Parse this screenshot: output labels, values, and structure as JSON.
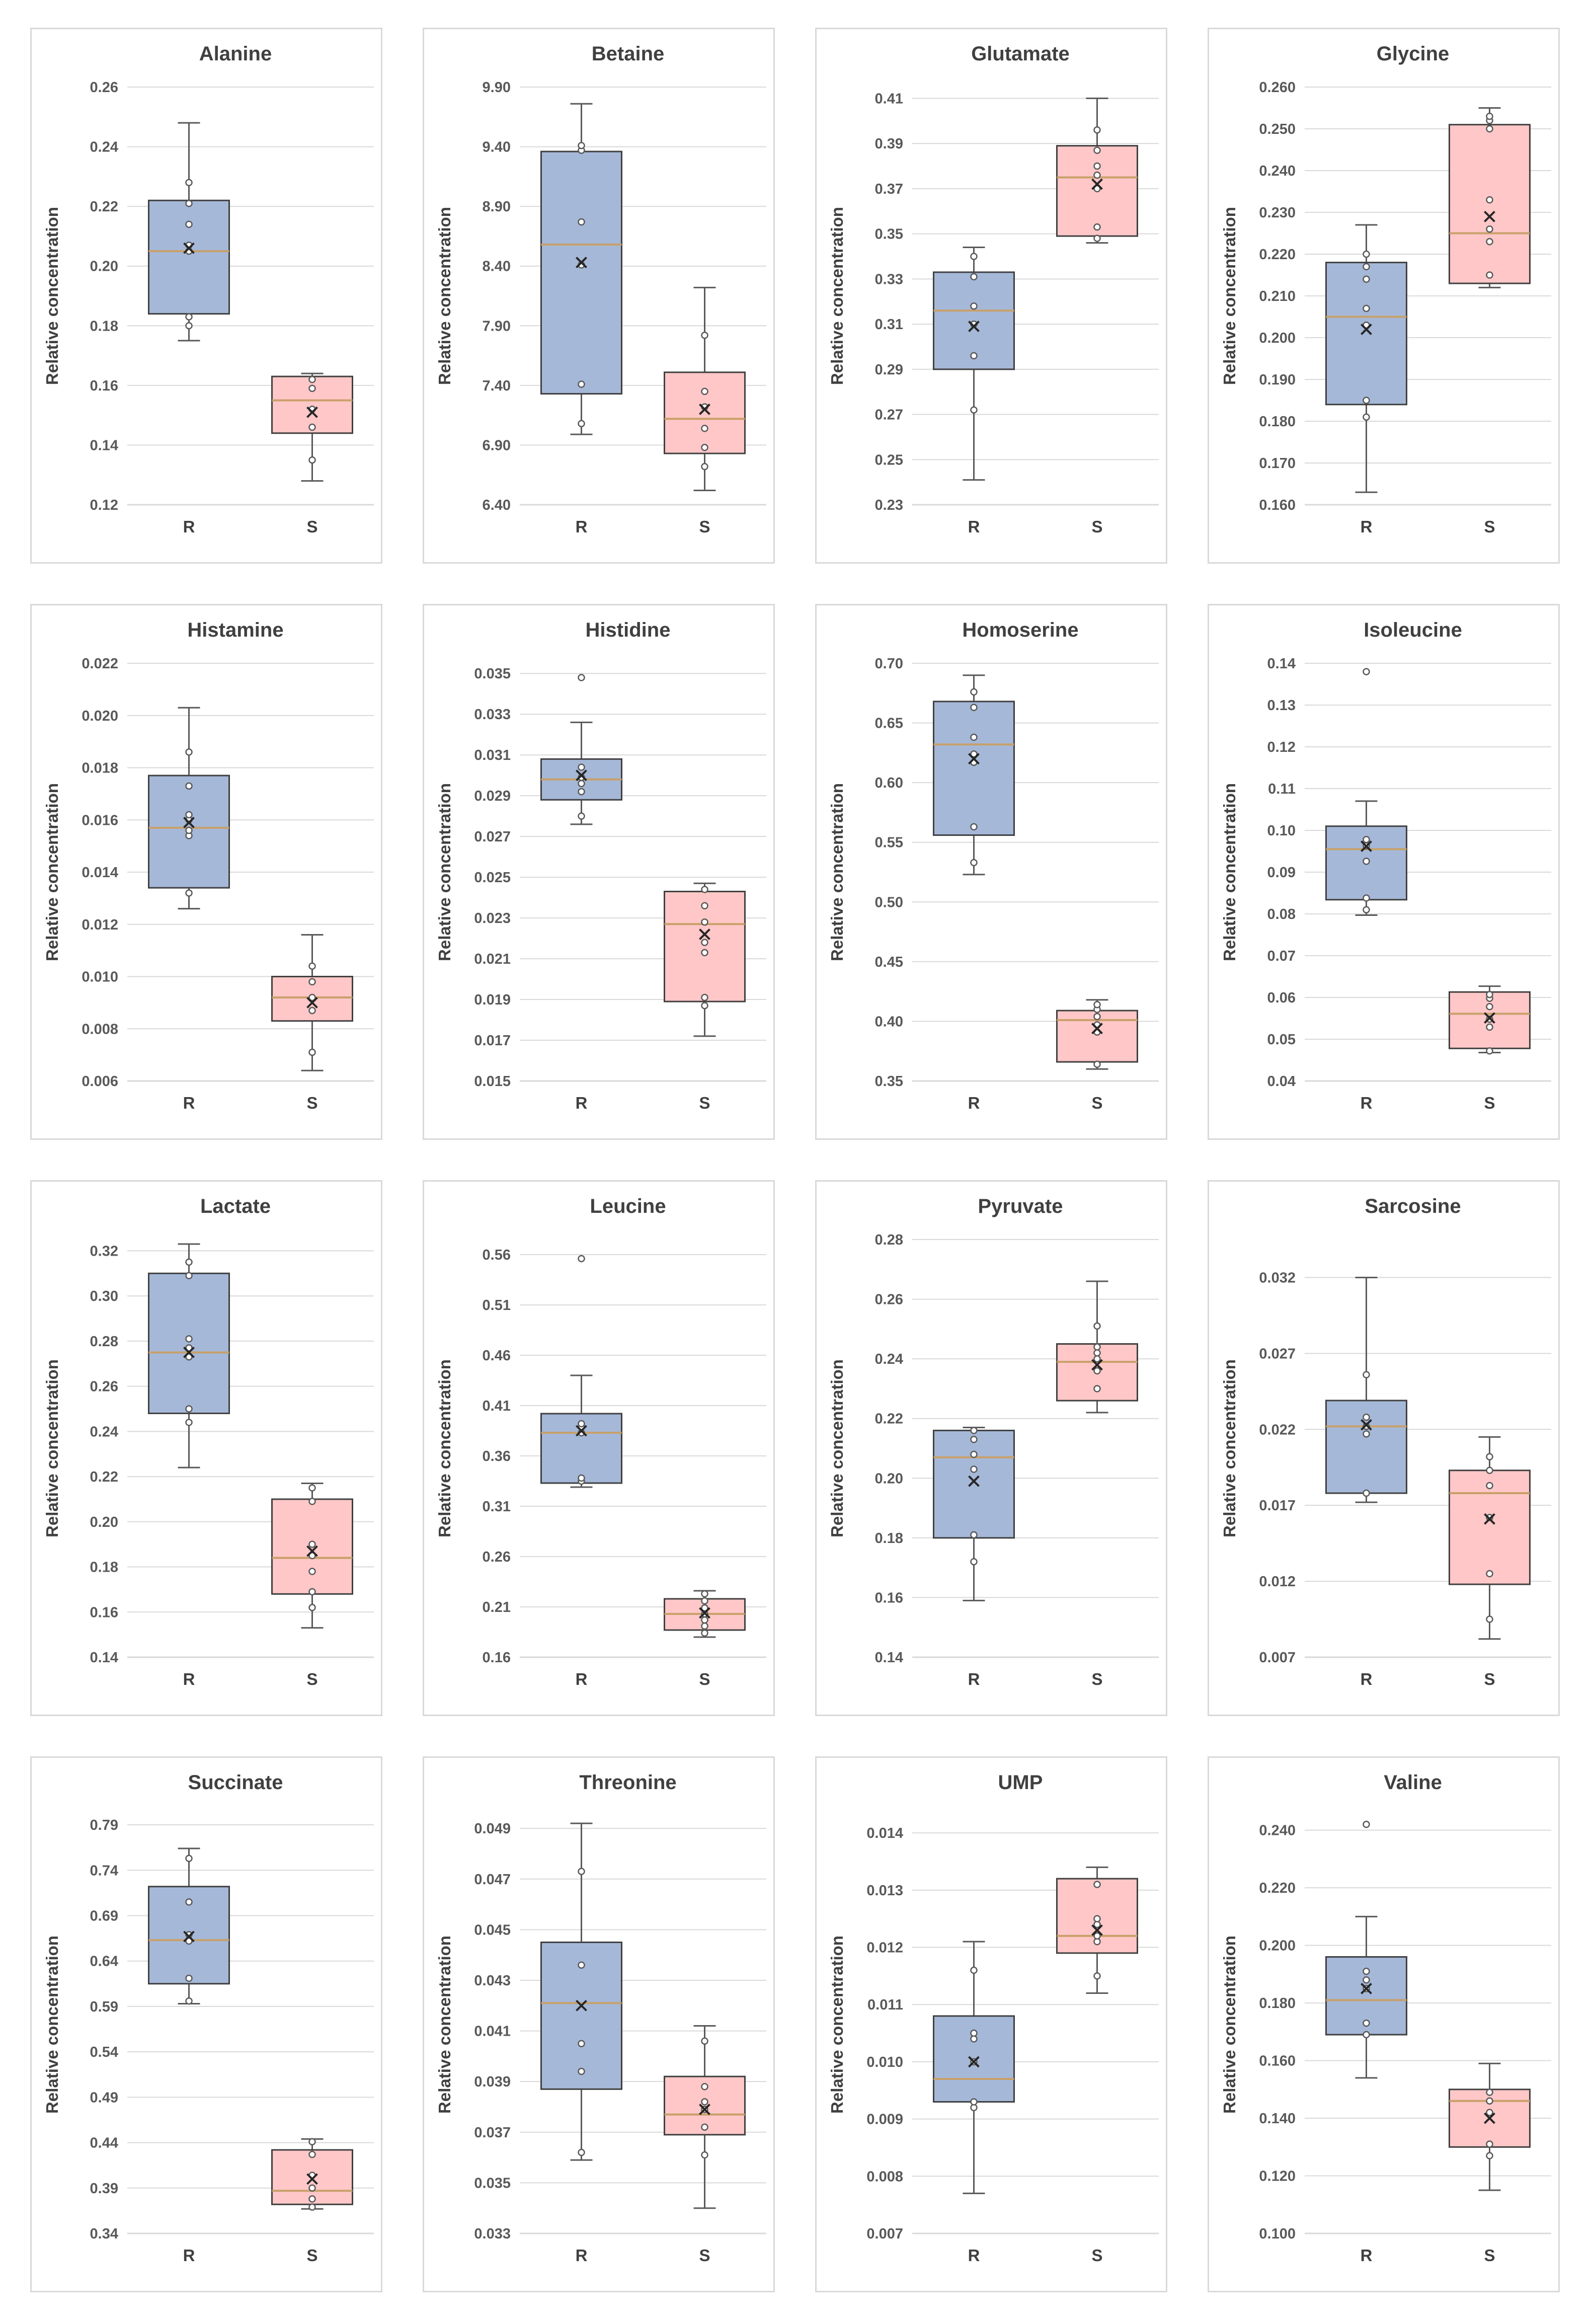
{
  "ylabel": "Relative concentration",
  "colors": {
    "R": "#a5b8d8",
    "S": "#ffc7c7",
    "median": "#c8a06a",
    "whisker": "#595959",
    "grid": "#d9d9d9",
    "point": "#595959"
  },
  "chart_data": [
    {
      "type": "box",
      "title": "Alanine",
      "categories": [
        "R",
        "S"
      ],
      "yticks": [
        "0.12",
        "0.14",
        "0.16",
        "0.18",
        "0.20",
        "0.22",
        "0.24",
        "0.26"
      ],
      "ylim": [
        0.12,
        0.26
      ],
      "boxes": [
        {
          "group": "R",
          "min": 0.175,
          "q1": 0.184,
          "median": 0.205,
          "q3": 0.222,
          "max": 0.248,
          "mean": 0.206,
          "points": [
            0.18,
            0.183,
            0.205,
            0.207,
            0.214,
            0.221,
            0.228
          ]
        },
        {
          "group": "S",
          "min": 0.128,
          "q1": 0.144,
          "median": 0.155,
          "q3": 0.163,
          "max": 0.164,
          "mean": 0.151,
          "points": [
            0.135,
            0.146,
            0.152,
            0.159,
            0.162
          ]
        }
      ]
    },
    {
      "type": "box",
      "title": "Betaine",
      "categories": [
        "R",
        "S"
      ],
      "yticks": [
        "6.40",
        "6.90",
        "7.40",
        "7.90",
        "8.40",
        "8.90",
        "9.40",
        "9.90"
      ],
      "ylim": [
        6.4,
        9.9
      ],
      "boxes": [
        {
          "group": "R",
          "min": 6.99,
          "q1": 7.33,
          "median": 8.58,
          "q3": 9.36,
          "max": 9.76,
          "mean": 8.43,
          "points": [
            7.08,
            7.41,
            8.41,
            8.77,
            9.37,
            9.41
          ]
        },
        {
          "group": "S",
          "min": 6.52,
          "q1": 6.83,
          "median": 7.12,
          "q3": 7.51,
          "max": 8.22,
          "mean": 7.2,
          "points": [
            6.72,
            6.88,
            7.04,
            7.22,
            7.35,
            7.82
          ]
        }
      ]
    },
    {
      "type": "box",
      "title": "Glutamate",
      "categories": [
        "R",
        "S"
      ],
      "yticks": [
        "0.23",
        "0.25",
        "0.27",
        "0.29",
        "0.31",
        "0.33",
        "0.35",
        "0.37",
        "0.39",
        "0.41"
      ],
      "ylim": [
        0.23,
        0.415
      ],
      "boxes": [
        {
          "group": "R",
          "min": 0.241,
          "q1": 0.29,
          "median": 0.316,
          "q3": 0.333,
          "max": 0.344,
          "mean": 0.309,
          "points": [
            0.272,
            0.296,
            0.31,
            0.318,
            0.331,
            0.34
          ]
        },
        {
          "group": "S",
          "min": 0.346,
          "q1": 0.349,
          "median": 0.375,
          "q3": 0.389,
          "max": 0.41,
          "mean": 0.372,
          "points": [
            0.348,
            0.353,
            0.37,
            0.376,
            0.38,
            0.387,
            0.396
          ]
        }
      ]
    },
    {
      "type": "box",
      "title": "Glycine",
      "categories": [
        "R",
        "S"
      ],
      "yticks": [
        "0.160",
        "0.170",
        "0.180",
        "0.190",
        "0.200",
        "0.210",
        "0.220",
        "0.230",
        "0.240",
        "0.250",
        "0.260"
      ],
      "ylim": [
        0.16,
        0.26
      ],
      "boxes": [
        {
          "group": "R",
          "min": 0.163,
          "q1": 0.184,
          "median": 0.205,
          "q3": 0.218,
          "max": 0.227,
          "mean": 0.202,
          "points": [
            0.181,
            0.185,
            0.203,
            0.207,
            0.214,
            0.217,
            0.22
          ]
        },
        {
          "group": "S",
          "min": 0.212,
          "q1": 0.213,
          "median": 0.225,
          "q3": 0.251,
          "max": 0.255,
          "mean": 0.229,
          "points": [
            0.215,
            0.223,
            0.226,
            0.233,
            0.25,
            0.252,
            0.253
          ]
        }
      ]
    },
    {
      "type": "box",
      "title": "Histamine",
      "categories": [
        "R",
        "S"
      ],
      "yticks": [
        "0.006",
        "0.008",
        "0.010",
        "0.012",
        "0.014",
        "0.016",
        "0.018",
        "0.020",
        "0.022"
      ],
      "ylim": [
        0.006,
        0.022
      ],
      "boxes": [
        {
          "group": "R",
          "min": 0.0126,
          "q1": 0.0134,
          "median": 0.0157,
          "q3": 0.0177,
          "max": 0.0203,
          "mean": 0.0159,
          "points": [
            0.0132,
            0.0154,
            0.0156,
            0.016,
            0.0162,
            0.0173,
            0.0186
          ]
        },
        {
          "group": "S",
          "min": 0.0064,
          "q1": 0.0083,
          "median": 0.0092,
          "q3": 0.01,
          "max": 0.0116,
          "mean": 0.009,
          "points": [
            0.0071,
            0.0087,
            0.0092,
            0.0098,
            0.0104
          ]
        }
      ]
    },
    {
      "type": "box",
      "title": "Histidine",
      "categories": [
        "R",
        "S"
      ],
      "yticks": [
        "0.015",
        "0.017",
        "0.019",
        "0.021",
        "0.023",
        "0.025",
        "0.027",
        "0.029",
        "0.031",
        "0.033",
        "0.035"
      ],
      "ylim": [
        0.015,
        0.0355
      ],
      "boxes": [
        {
          "group": "R",
          "min": 0.0276,
          "q1": 0.0288,
          "median": 0.0298,
          "q3": 0.0308,
          "max": 0.0326,
          "mean": 0.03,
          "points": [
            0.028,
            0.0292,
            0.0296,
            0.0299,
            0.0304,
            0.0348
          ]
        },
        {
          "group": "S",
          "min": 0.0172,
          "q1": 0.0189,
          "median": 0.0227,
          "q3": 0.0243,
          "max": 0.0247,
          "mean": 0.0222,
          "points": [
            0.0187,
            0.0191,
            0.0213,
            0.0218,
            0.0228,
            0.0236,
            0.0244
          ]
        }
      ]
    },
    {
      "type": "box",
      "title": "Homoserine",
      "categories": [
        "R",
        "S"
      ],
      "yticks": [
        "0.35",
        "0.40",
        "0.45",
        "0.50",
        "0.55",
        "0.60",
        "0.65",
        "0.70"
      ],
      "ylim": [
        0.35,
        0.7
      ],
      "boxes": [
        {
          "group": "R",
          "min": 0.523,
          "q1": 0.556,
          "median": 0.632,
          "q3": 0.668,
          "max": 0.69,
          "mean": 0.62,
          "points": [
            0.533,
            0.563,
            0.617,
            0.624,
            0.638,
            0.663,
            0.676
          ]
        },
        {
          "group": "S",
          "min": 0.36,
          "q1": 0.366,
          "median": 0.401,
          "q3": 0.409,
          "max": 0.418,
          "mean": 0.394,
          "points": [
            0.364,
            0.391,
            0.397,
            0.404,
            0.41,
            0.414
          ]
        }
      ]
    },
    {
      "type": "box",
      "title": "Isoleucine",
      "categories": [
        "R",
        "S"
      ],
      "yticks": [
        "0.04",
        "0.05",
        "0.06",
        "0.07",
        "0.08",
        "0.09",
        "0.10",
        "0.11",
        "0.12",
        "0.13",
        "0.14"
      ],
      "ylim": [
        0.04,
        0.14
      ],
      "boxes": [
        {
          "group": "R",
          "min": 0.0797,
          "q1": 0.0834,
          "median": 0.0955,
          "q3": 0.101,
          "max": 0.107,
          "mean": 0.0962,
          "points": [
            0.081,
            0.0838,
            0.0926,
            0.0963,
            0.0978,
            0.138
          ]
        },
        {
          "group": "S",
          "min": 0.0468,
          "q1": 0.0478,
          "median": 0.0561,
          "q3": 0.0613,
          "max": 0.0627,
          "mean": 0.0551,
          "points": [
            0.0472,
            0.0529,
            0.0548,
            0.0578,
            0.0598,
            0.0607
          ]
        }
      ]
    },
    {
      "type": "box",
      "title": "Lactate",
      "categories": [
        "R",
        "S"
      ],
      "yticks": [
        "0.14",
        "0.16",
        "0.18",
        "0.20",
        "0.22",
        "0.24",
        "0.26",
        "0.28",
        "0.30",
        "0.32"
      ],
      "ylim": [
        0.14,
        0.325
      ],
      "boxes": [
        {
          "group": "R",
          "min": 0.224,
          "q1": 0.248,
          "median": 0.275,
          "q3": 0.31,
          "max": 0.323,
          "mean": 0.275,
          "points": [
            0.244,
            0.25,
            0.273,
            0.277,
            0.281,
            0.309,
            0.315
          ]
        },
        {
          "group": "S",
          "min": 0.153,
          "q1": 0.168,
          "median": 0.184,
          "q3": 0.21,
          "max": 0.217,
          "mean": 0.187,
          "points": [
            0.162,
            0.169,
            0.178,
            0.185,
            0.19,
            0.209,
            0.215
          ]
        }
      ]
    },
    {
      "type": "box",
      "title": "Leucine",
      "categories": [
        "R",
        "S"
      ],
      "yticks": [
        "0.16",
        "0.21",
        "0.26",
        "0.31",
        "0.36",
        "0.41",
        "0.46",
        "0.51",
        "0.56"
      ],
      "ylim": [
        0.16,
        0.575
      ],
      "boxes": [
        {
          "group": "R",
          "min": 0.329,
          "q1": 0.333,
          "median": 0.383,
          "q3": 0.402,
          "max": 0.44,
          "mean": 0.385,
          "points": [
            0.335,
            0.338,
            0.383,
            0.389,
            0.392,
            0.556
          ]
        },
        {
          "group": "S",
          "min": 0.18,
          "q1": 0.187,
          "median": 0.203,
          "q3": 0.218,
          "max": 0.226,
          "mean": 0.204,
          "points": [
            0.184,
            0.191,
            0.197,
            0.203,
            0.209,
            0.216,
            0.223
          ]
        }
      ]
    },
    {
      "type": "box",
      "title": "Pyruvate",
      "categories": [
        "R",
        "S"
      ],
      "yticks": [
        "0.14",
        "0.16",
        "0.18",
        "0.20",
        "0.22",
        "0.24",
        "0.26",
        "0.28"
      ],
      "ylim": [
        0.14,
        0.28
      ],
      "boxes": [
        {
          "group": "R",
          "min": 0.159,
          "q1": 0.18,
          "median": 0.207,
          "q3": 0.216,
          "max": 0.217,
          "mean": 0.199,
          "points": [
            0.172,
            0.181,
            0.203,
            0.208,
            0.213,
            0.216
          ]
        },
        {
          "group": "S",
          "min": 0.222,
          "q1": 0.226,
          "median": 0.239,
          "q3": 0.245,
          "max": 0.266,
          "mean": 0.238,
          "points": [
            0.23,
            0.236,
            0.24,
            0.242,
            0.244,
            0.251
          ]
        }
      ]
    },
    {
      "type": "box",
      "title": "Sarcosine",
      "categories": [
        "R",
        "S"
      ],
      "yticks": [
        "0.007",
        "0.012",
        "0.017",
        "0.022",
        "0.027",
        "0.032"
      ],
      "ylim": [
        0.007,
        0.0345
      ],
      "boxes": [
        {
          "group": "R",
          "min": 0.0172,
          "q1": 0.0178,
          "median": 0.0222,
          "q3": 0.0239,
          "max": 0.032,
          "mean": 0.0223,
          "points": [
            0.0178,
            0.0217,
            0.0222,
            0.0228,
            0.0256
          ]
        },
        {
          "group": "S",
          "min": 0.0082,
          "q1": 0.0118,
          "median": 0.0178,
          "q3": 0.0193,
          "max": 0.0215,
          "mean": 0.0161,
          "points": [
            0.0095,
            0.0125,
            0.0162,
            0.0183,
            0.0193,
            0.0202
          ]
        }
      ]
    },
    {
      "type": "box",
      "title": "Succinate",
      "categories": [
        "R",
        "S"
      ],
      "yticks": [
        "0.34",
        "0.39",
        "0.44",
        "0.49",
        "0.54",
        "0.59",
        "0.64",
        "0.69",
        "0.74",
        "0.79"
      ],
      "ylim": [
        0.34,
        0.8
      ],
      "boxes": [
        {
          "group": "R",
          "min": 0.593,
          "q1": 0.615,
          "median": 0.663,
          "q3": 0.722,
          "max": 0.764,
          "mean": 0.667,
          "points": [
            0.596,
            0.621,
            0.662,
            0.669,
            0.705,
            0.753
          ]
        },
        {
          "group": "S",
          "min": 0.367,
          "q1": 0.372,
          "median": 0.387,
          "q3": 0.432,
          "max": 0.444,
          "mean": 0.4,
          "points": [
            0.369,
            0.378,
            0.39,
            0.404,
            0.427,
            0.441
          ]
        }
      ]
    },
    {
      "type": "box",
      "title": "Threonine",
      "categories": [
        "R",
        "S"
      ],
      "yticks": [
        "0.033",
        "0.035",
        "0.037",
        "0.039",
        "0.041",
        "0.043",
        "0.045",
        "0.047",
        "0.049"
      ],
      "ylim": [
        0.033,
        0.0495
      ],
      "boxes": [
        {
          "group": "R",
          "min": 0.0359,
          "q1": 0.0387,
          "median": 0.0421,
          "q3": 0.0445,
          "max": 0.0492,
          "mean": 0.042,
          "points": [
            0.0362,
            0.0394,
            0.0405,
            0.0436,
            0.0473
          ]
        },
        {
          "group": "S",
          "min": 0.034,
          "q1": 0.0369,
          "median": 0.0377,
          "q3": 0.0392,
          "max": 0.0412,
          "mean": 0.0379,
          "points": [
            0.0361,
            0.0372,
            0.0379,
            0.0382,
            0.0388,
            0.0406
          ]
        }
      ]
    },
    {
      "type": "box",
      "title": "UMP",
      "categories": [
        "R",
        "S"
      ],
      "yticks": [
        "0.007",
        "0.008",
        "0.009",
        "0.010",
        "0.011",
        "0.012",
        "0.013",
        "0.014"
      ],
      "ylim": [
        0.007,
        0.0143
      ],
      "boxes": [
        {
          "group": "R",
          "min": 0.0077,
          "q1": 0.0093,
          "median": 0.0097,
          "q3": 0.0108,
          "max": 0.0121,
          "mean": 0.01,
          "points": [
            0.0092,
            0.0093,
            0.01,
            0.0104,
            0.0105,
            0.0116
          ]
        },
        {
          "group": "S",
          "min": 0.0112,
          "q1": 0.0119,
          "median": 0.0122,
          "q3": 0.0132,
          "max": 0.0134,
          "mean": 0.0123,
          "points": [
            0.0115,
            0.0121,
            0.0122,
            0.0124,
            0.0125,
            0.0131
          ]
        }
      ]
    },
    {
      "type": "box",
      "title": "Valine",
      "categories": [
        "R",
        "S"
      ],
      "yticks": [
        "0.100",
        "0.120",
        "0.140",
        "0.160",
        "0.180",
        "0.200",
        "0.220",
        "0.240"
      ],
      "ylim": [
        0.1,
        0.245
      ],
      "boxes": [
        {
          "group": "R",
          "min": 0.154,
          "q1": 0.169,
          "median": 0.181,
          "q3": 0.196,
          "max": 0.21,
          "mean": 0.185,
          "points": [
            0.169,
            0.173,
            0.185,
            0.188,
            0.191,
            0.242
          ]
        },
        {
          "group": "S",
          "min": 0.115,
          "q1": 0.13,
          "median": 0.146,
          "q3": 0.15,
          "max": 0.159,
          "mean": 0.14,
          "points": [
            0.127,
            0.131,
            0.142,
            0.146,
            0.149
          ]
        }
      ]
    }
  ]
}
